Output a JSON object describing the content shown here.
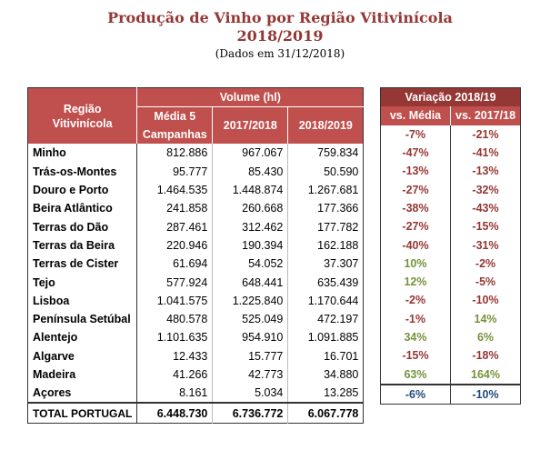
{
  "title_line1": "Produção de Vinho por Região Vitivinícola",
  "title_line2": "2018/2019",
  "subtitle": "(Dados em 31/12/2018)",
  "headers": {
    "region": "Região Vitivinícola",
    "volume": "Volume (hl)",
    "avg5": "Média 5 Campanhas",
    "y1718": "2017/2018",
    "y1819": "2018/2019",
    "variation": "Variação 2018/19",
    "vs_avg": "vs. Média",
    "vs_1718": "vs. 2017/18"
  },
  "rows": [
    {
      "region": "Minho",
      "avg5": "812.886",
      "y1718": "967.067",
      "y1819": "759.834",
      "vs_avg": "-7%",
      "vs_1718": "-21%"
    },
    {
      "region": "Trás-os-Montes",
      "avg5": "95.777",
      "y1718": "85.430",
      "y1819": "50.590",
      "vs_avg": "-47%",
      "vs_1718": "-41%"
    },
    {
      "region": "Douro e Porto",
      "avg5": "1.464.535",
      "y1718": "1.448.874",
      "y1819": "1.267.681",
      "vs_avg": "-13%",
      "vs_1718": "-13%"
    },
    {
      "region": "Beira Atlântico",
      "avg5": "241.858",
      "y1718": "260.668",
      "y1819": "177.366",
      "vs_avg": "-27%",
      "vs_1718": "-32%"
    },
    {
      "region": "Terras do Dão",
      "avg5": "287.461",
      "y1718": "312.462",
      "y1819": "177.782",
      "vs_avg": "-38%",
      "vs_1718": "-43%"
    },
    {
      "region": "Terras da Beira",
      "avg5": "220.946",
      "y1718": "190.394",
      "y1819": "162.188",
      "vs_avg": "-27%",
      "vs_1718": "-15%"
    },
    {
      "region": "Terras de Cister",
      "avg5": "61.694",
      "y1718": "54.052",
      "y1819": "37.307",
      "vs_avg": "-40%",
      "vs_1718": "-31%"
    },
    {
      "region": "Tejo",
      "avg5": "577.924",
      "y1718": "648.441",
      "y1819": "635.439",
      "vs_avg": "10%",
      "vs_1718": "-2%"
    },
    {
      "region": "Lisboa",
      "avg5": "1.041.575",
      "y1718": "1.225.840",
      "y1819": "1.170.644",
      "vs_avg": "12%",
      "vs_1718": "-5%"
    },
    {
      "region": "Península Setúbal",
      "avg5": "480.578",
      "y1718": "525.049",
      "y1819": "472.197",
      "vs_avg": "-2%",
      "vs_1718": "-10%"
    },
    {
      "region": "Alentejo",
      "avg5": "1.101.635",
      "y1718": "954.910",
      "y1819": "1.091.885",
      "vs_avg": "-1%",
      "vs_1718": "14%"
    },
    {
      "region": "Algarve",
      "avg5": "12.433",
      "y1718": "15.777",
      "y1819": "16.701",
      "vs_avg": "34%",
      "vs_1718": "6%"
    },
    {
      "region": "Madeira",
      "avg5": "41.266",
      "y1718": "42.773",
      "y1819": "34.880",
      "vs_avg": "-15%",
      "vs_1718": "-18%"
    },
    {
      "region": "Açores",
      "avg5": "8.161",
      "y1718": "5.034",
      "y1819": "13.285",
      "vs_avg": "63%",
      "vs_1718": "164%"
    }
  ],
  "total": {
    "region": "TOTAL PORTUGAL",
    "avg5": "6.448.730",
    "y1718": "6.736.772",
    "y1819": "6.067.778",
    "vs_avg": "-6%",
    "vs_1718": "-10%"
  },
  "colors": {
    "header": "#c0504d",
    "header_dark": "#953735",
    "negative": "#953735",
    "positive": "#76923c",
    "total": "#1f497d"
  }
}
